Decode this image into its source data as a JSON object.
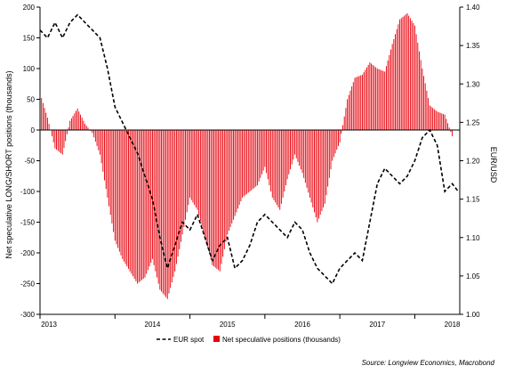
{
  "chart_data": {
    "type": "bar+line",
    "title": "",
    "left_axis": {
      "label": "Net speculative LONG/SHORT positions (thousands)",
      "ylim": [
        -300,
        200
      ],
      "ticks": [
        "200",
        "150",
        "100",
        "50",
        "0",
        "-50",
        "-100",
        "-150",
        "-200",
        "-250",
        "-300"
      ]
    },
    "right_axis": {
      "label": "EUR/USD",
      "ylim": [
        1.0,
        1.4
      ],
      "ticks": [
        "1.40",
        "1.35",
        "1.30",
        "1.25",
        "1.20",
        "1.15",
        "1.10",
        "1.05",
        "1.00"
      ]
    },
    "x_axis": {
      "range": [
        2013.0,
        2018.6
      ],
      "ticks": [
        "2013",
        "2014",
        "2015",
        "2016",
        "2017",
        "2018"
      ]
    },
    "legend": {
      "placement": "bottom",
      "items": [
        "EUR spot",
        "Net speculative positions (thousands)"
      ]
    },
    "grid": false,
    "source": "Source: Longview Economics, Macrobond",
    "colors": {
      "bars": "#e8000b",
      "line": "#000000",
      "zero_line": "#000000"
    },
    "series": [
      {
        "name": "Net speculative positions (thousands)",
        "axis": "left",
        "style": "bars",
        "x": [
          2013.0,
          2013.1,
          2013.2,
          2013.3,
          2013.4,
          2013.5,
          2013.6,
          2013.7,
          2013.8,
          2013.9,
          2014.0,
          2014.1,
          2014.2,
          2014.3,
          2014.4,
          2014.5,
          2014.6,
          2014.7,
          2014.8,
          2014.9,
          2015.0,
          2015.1,
          2015.2,
          2015.3,
          2015.4,
          2015.5,
          2015.6,
          2015.7,
          2015.8,
          2015.9,
          2016.0,
          2016.1,
          2016.2,
          2016.3,
          2016.4,
          2016.5,
          2016.6,
          2016.7,
          2016.8,
          2016.9,
          2017.0,
          2017.1,
          2017.2,
          2017.3,
          2017.4,
          2017.5,
          2017.6,
          2017.7,
          2017.8,
          2017.9,
          2018.0,
          2018.1,
          2018.2,
          2018.3,
          2018.4,
          2018.5
        ],
        "values": [
          60,
          20,
          -30,
          -40,
          15,
          35,
          10,
          -5,
          -40,
          -110,
          -180,
          -210,
          -230,
          -250,
          -240,
          -210,
          -260,
          -275,
          -230,
          -170,
          -110,
          -130,
          -175,
          -220,
          -230,
          -170,
          -140,
          -110,
          -100,
          -90,
          -60,
          -110,
          -130,
          -80,
          -40,
          -70,
          -110,
          -150,
          -120,
          -50,
          -20,
          50,
          85,
          90,
          110,
          100,
          95,
          140,
          180,
          190,
          170,
          100,
          40,
          30,
          25,
          -10
        ]
      },
      {
        "name": "EUR spot",
        "axis": "right",
        "style": "dashed-line",
        "x": [
          2013.0,
          2013.1,
          2013.2,
          2013.3,
          2013.4,
          2013.5,
          2013.6,
          2013.7,
          2013.8,
          2013.9,
          2014.0,
          2014.1,
          2014.2,
          2014.3,
          2014.4,
          2014.5,
          2014.6,
          2014.7,
          2014.8,
          2014.9,
          2015.0,
          2015.1,
          2015.2,
          2015.3,
          2015.4,
          2015.5,
          2015.6,
          2015.7,
          2015.8,
          2015.9,
          2016.0,
          2016.1,
          2016.2,
          2016.3,
          2016.4,
          2016.5,
          2016.6,
          2016.7,
          2016.8,
          2016.9,
          2017.0,
          2017.1,
          2017.2,
          2017.3,
          2017.4,
          2017.5,
          2017.6,
          2017.7,
          2017.8,
          2017.9,
          2018.0,
          2018.1,
          2018.2,
          2018.3,
          2018.4,
          2018.5,
          2018.58
        ],
        "values": [
          1.37,
          1.36,
          1.38,
          1.36,
          1.38,
          1.39,
          1.38,
          1.37,
          1.36,
          1.32,
          1.27,
          1.25,
          1.23,
          1.21,
          1.18,
          1.15,
          1.1,
          1.06,
          1.09,
          1.12,
          1.11,
          1.13,
          1.1,
          1.07,
          1.09,
          1.1,
          1.06,
          1.07,
          1.09,
          1.12,
          1.13,
          1.12,
          1.11,
          1.1,
          1.12,
          1.11,
          1.08,
          1.06,
          1.05,
          1.04,
          1.06,
          1.07,
          1.08,
          1.07,
          1.12,
          1.17,
          1.19,
          1.18,
          1.17,
          1.18,
          1.2,
          1.23,
          1.24,
          1.22,
          1.16,
          1.17,
          1.16
        ]
      }
    ]
  }
}
